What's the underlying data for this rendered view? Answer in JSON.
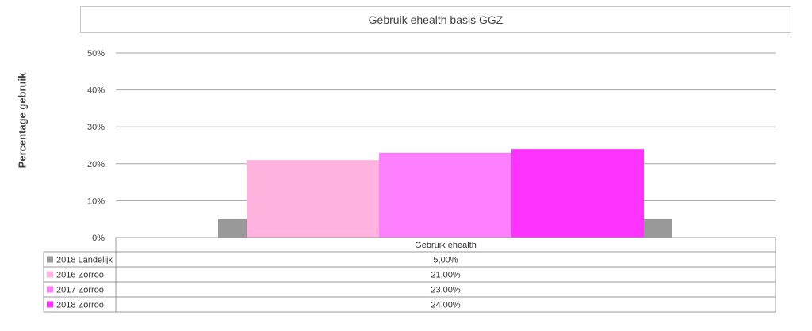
{
  "chart_data": {
    "type": "bar",
    "title": "Gebruik ehealth basis GGZ",
    "ylabel": "Percentage gebruik",
    "xlabel": "",
    "categories": [
      "Gebruik ehealth"
    ],
    "ylim": [
      0,
      50
    ],
    "yticks": [
      "0%",
      "10%",
      "20%",
      "30%",
      "40%",
      "50%"
    ],
    "ytick_values": [
      0,
      10,
      20,
      30,
      40,
      50
    ],
    "grid": true,
    "legend_placement": "data-table-below",
    "series": [
      {
        "name": "2018 Landelijk",
        "values": [
          5
        ],
        "color": "#999999",
        "label": "5,00%"
      },
      {
        "name": "2016 Zorroo",
        "values": [
          21
        ],
        "color": "#ffb3de",
        "label": "21,00%"
      },
      {
        "name": "2017 Zorroo",
        "values": [
          23
        ],
        "color": "#ff80ff",
        "label": "23,00%"
      },
      {
        "name": "2018 Zorroo",
        "values": [
          24
        ],
        "color": "#ff33ff",
        "label": "24,00%"
      }
    ]
  }
}
